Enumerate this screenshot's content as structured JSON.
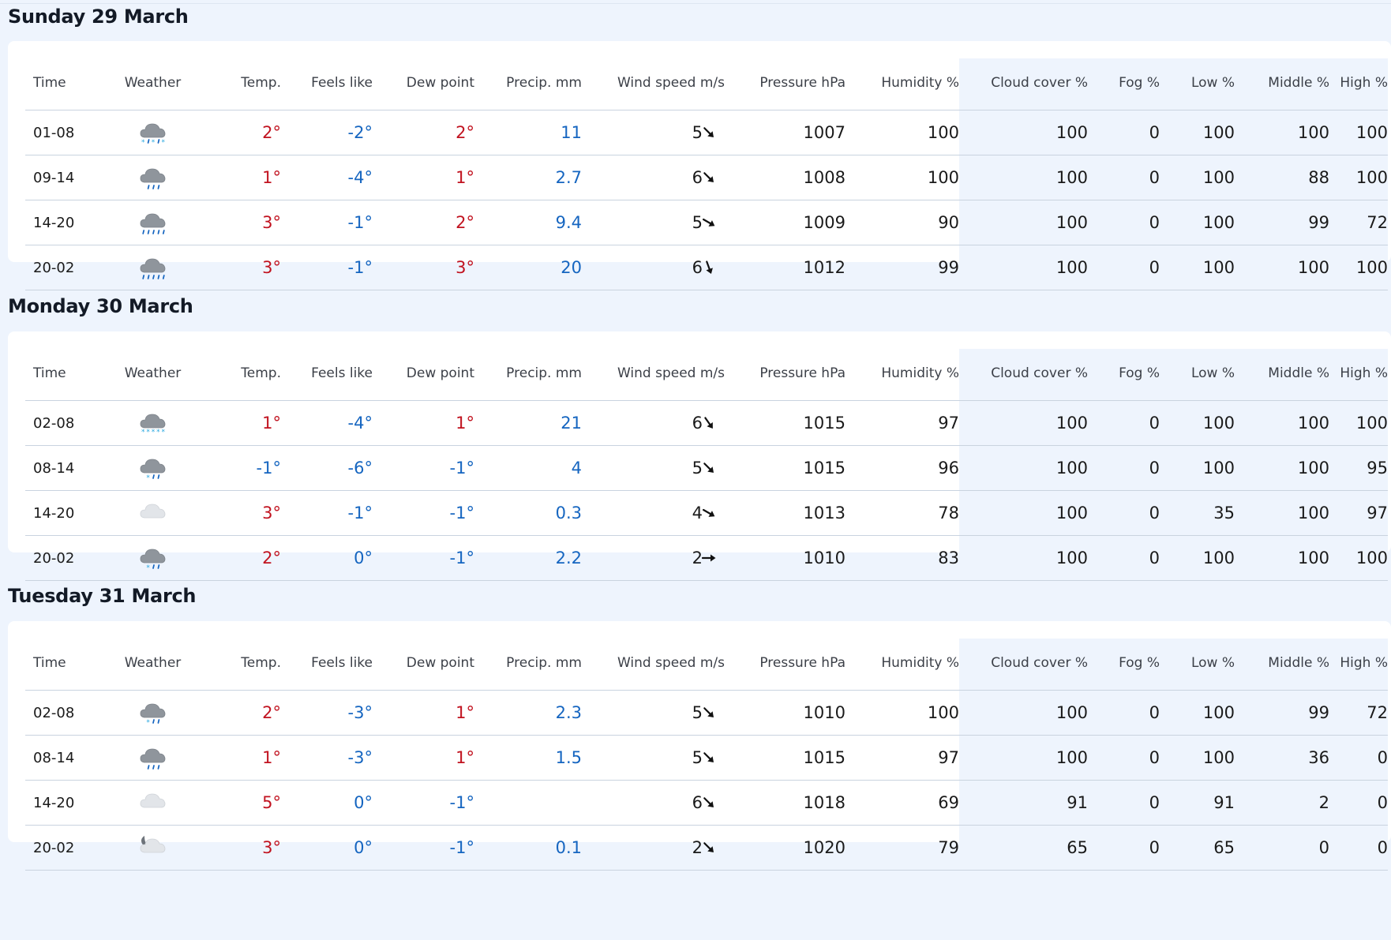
{
  "columns": {
    "time": "Time",
    "weather": "Weather",
    "temp": "Temp.",
    "feels": "Feels like",
    "dew": "Dew point",
    "precip": "Precip. mm",
    "wind": "Wind speed m/s",
    "pressure": "Pressure hPa",
    "humidity": "Humidity %",
    "cloud": "Cloud cover %",
    "fog": "Fog %",
    "low": "Low %",
    "middle": "Middle %",
    "high": "High %"
  },
  "colors": {
    "warm": "#c1121f",
    "cold": "#1565c0",
    "cloud_band": "#eef4fd"
  },
  "days": [
    {
      "title": "Sunday 29 March",
      "rows": [
        {
          "time": "01-08",
          "icon": "cloud-sleet-icon",
          "temp": "2°",
          "temp_warm": true,
          "feels": "-2°",
          "feels_warm": false,
          "dew": "2°",
          "dew_warm": true,
          "precip": "11",
          "wind": "5",
          "wind_dir_deg": 135,
          "pressure": "1007",
          "humidity": "100",
          "cloud": "100",
          "fog": "0",
          "low": "100",
          "middle": "100",
          "high": "100"
        },
        {
          "time": "09-14",
          "icon": "cloud-light-rain-icon",
          "temp": "1°",
          "temp_warm": true,
          "feels": "-4°",
          "feels_warm": false,
          "dew": "1°",
          "dew_warm": true,
          "precip": "2.7",
          "wind": "6",
          "wind_dir_deg": 135,
          "pressure": "1008",
          "humidity": "100",
          "cloud": "100",
          "fog": "0",
          "low": "100",
          "middle": "88",
          "high": "100"
        },
        {
          "time": "14-20",
          "icon": "cloud-rain-icon",
          "temp": "3°",
          "temp_warm": true,
          "feels": "-1°",
          "feels_warm": false,
          "dew": "2°",
          "dew_warm": true,
          "precip": "9.4",
          "wind": "5",
          "wind_dir_deg": 120,
          "pressure": "1009",
          "humidity": "90",
          "cloud": "100",
          "fog": "0",
          "low": "100",
          "middle": "99",
          "high": "72"
        },
        {
          "time": "20-02",
          "icon": "cloud-rain-icon",
          "temp": "3°",
          "temp_warm": true,
          "feels": "-1°",
          "feels_warm": false,
          "dew": "3°",
          "dew_warm": true,
          "precip": "20",
          "wind": "6",
          "wind_dir_deg": 160,
          "pressure": "1012",
          "humidity": "99",
          "cloud": "100",
          "fog": "0",
          "low": "100",
          "middle": "100",
          "high": "100"
        }
      ]
    },
    {
      "title": "Monday 30 March",
      "rows": [
        {
          "time": "02-08",
          "icon": "cloud-snow-icon",
          "temp": "1°",
          "temp_warm": true,
          "feels": "-4°",
          "feels_warm": false,
          "dew": "1°",
          "dew_warm": true,
          "precip": "21",
          "wind": "6",
          "wind_dir_deg": 145,
          "pressure": "1015",
          "humidity": "97",
          "cloud": "100",
          "fog": "0",
          "low": "100",
          "middle": "100",
          "high": "100"
        },
        {
          "time": "08-14",
          "icon": "cloud-light-sleet-icon",
          "temp": "-1°",
          "temp_warm": false,
          "feels": "-6°",
          "feels_warm": false,
          "dew": "-1°",
          "dew_warm": false,
          "precip": "4",
          "wind": "5",
          "wind_dir_deg": 135,
          "pressure": "1015",
          "humidity": "96",
          "cloud": "100",
          "fog": "0",
          "low": "100",
          "middle": "100",
          "high": "95"
        },
        {
          "time": "14-20",
          "icon": "light-cloud-icon",
          "temp": "3°",
          "temp_warm": true,
          "feels": "-1°",
          "feels_warm": false,
          "dew": "-1°",
          "dew_warm": false,
          "precip": "0.3",
          "wind": "4",
          "wind_dir_deg": 120,
          "pressure": "1013",
          "humidity": "78",
          "cloud": "100",
          "fog": "0",
          "low": "35",
          "middle": "100",
          "high": "97"
        },
        {
          "time": "20-02",
          "icon": "cloud-light-sleet-icon",
          "temp": "2°",
          "temp_warm": true,
          "feels": "0°",
          "feels_warm": false,
          "dew": "-1°",
          "dew_warm": false,
          "precip": "2.2",
          "wind": "2",
          "wind_dir_deg": 90,
          "pressure": "1010",
          "humidity": "83",
          "cloud": "100",
          "fog": "0",
          "low": "100",
          "middle": "100",
          "high": "100"
        }
      ]
    },
    {
      "title": "Tuesday 31 March",
      "rows": [
        {
          "time": "02-08",
          "icon": "cloud-light-sleet-icon",
          "temp": "2°",
          "temp_warm": true,
          "feels": "-3°",
          "feels_warm": false,
          "dew": "1°",
          "dew_warm": true,
          "precip": "2.3",
          "wind": "5",
          "wind_dir_deg": 135,
          "pressure": "1010",
          "humidity": "100",
          "cloud": "100",
          "fog": "0",
          "low": "100",
          "middle": "99",
          "high": "72"
        },
        {
          "time": "08-14",
          "icon": "cloud-light-rain-icon",
          "temp": "1°",
          "temp_warm": true,
          "feels": "-3°",
          "feels_warm": false,
          "dew": "1°",
          "dew_warm": true,
          "precip": "1.5",
          "wind": "5",
          "wind_dir_deg": 135,
          "pressure": "1015",
          "humidity": "97",
          "cloud": "100",
          "fog": "0",
          "low": "100",
          "middle": "36",
          "high": "0"
        },
        {
          "time": "14-20",
          "icon": "light-cloud-icon",
          "temp": "5°",
          "temp_warm": true,
          "feels": "0°",
          "feels_warm": false,
          "dew": "-1°",
          "dew_warm": false,
          "precip": "",
          "wind": "6",
          "wind_dir_deg": 135,
          "pressure": "1018",
          "humidity": "69",
          "cloud": "91",
          "fog": "0",
          "low": "91",
          "middle": "2",
          "high": "0"
        },
        {
          "time": "20-02",
          "icon": "moon-cloud-icon",
          "temp": "3°",
          "temp_warm": true,
          "feels": "0°",
          "feels_warm": false,
          "dew": "-1°",
          "dew_warm": false,
          "precip": "0.1",
          "wind": "2",
          "wind_dir_deg": 135,
          "pressure": "1020",
          "humidity": "79",
          "cloud": "65",
          "fog": "0",
          "low": "65",
          "middle": "0",
          "high": "0"
        }
      ]
    }
  ]
}
